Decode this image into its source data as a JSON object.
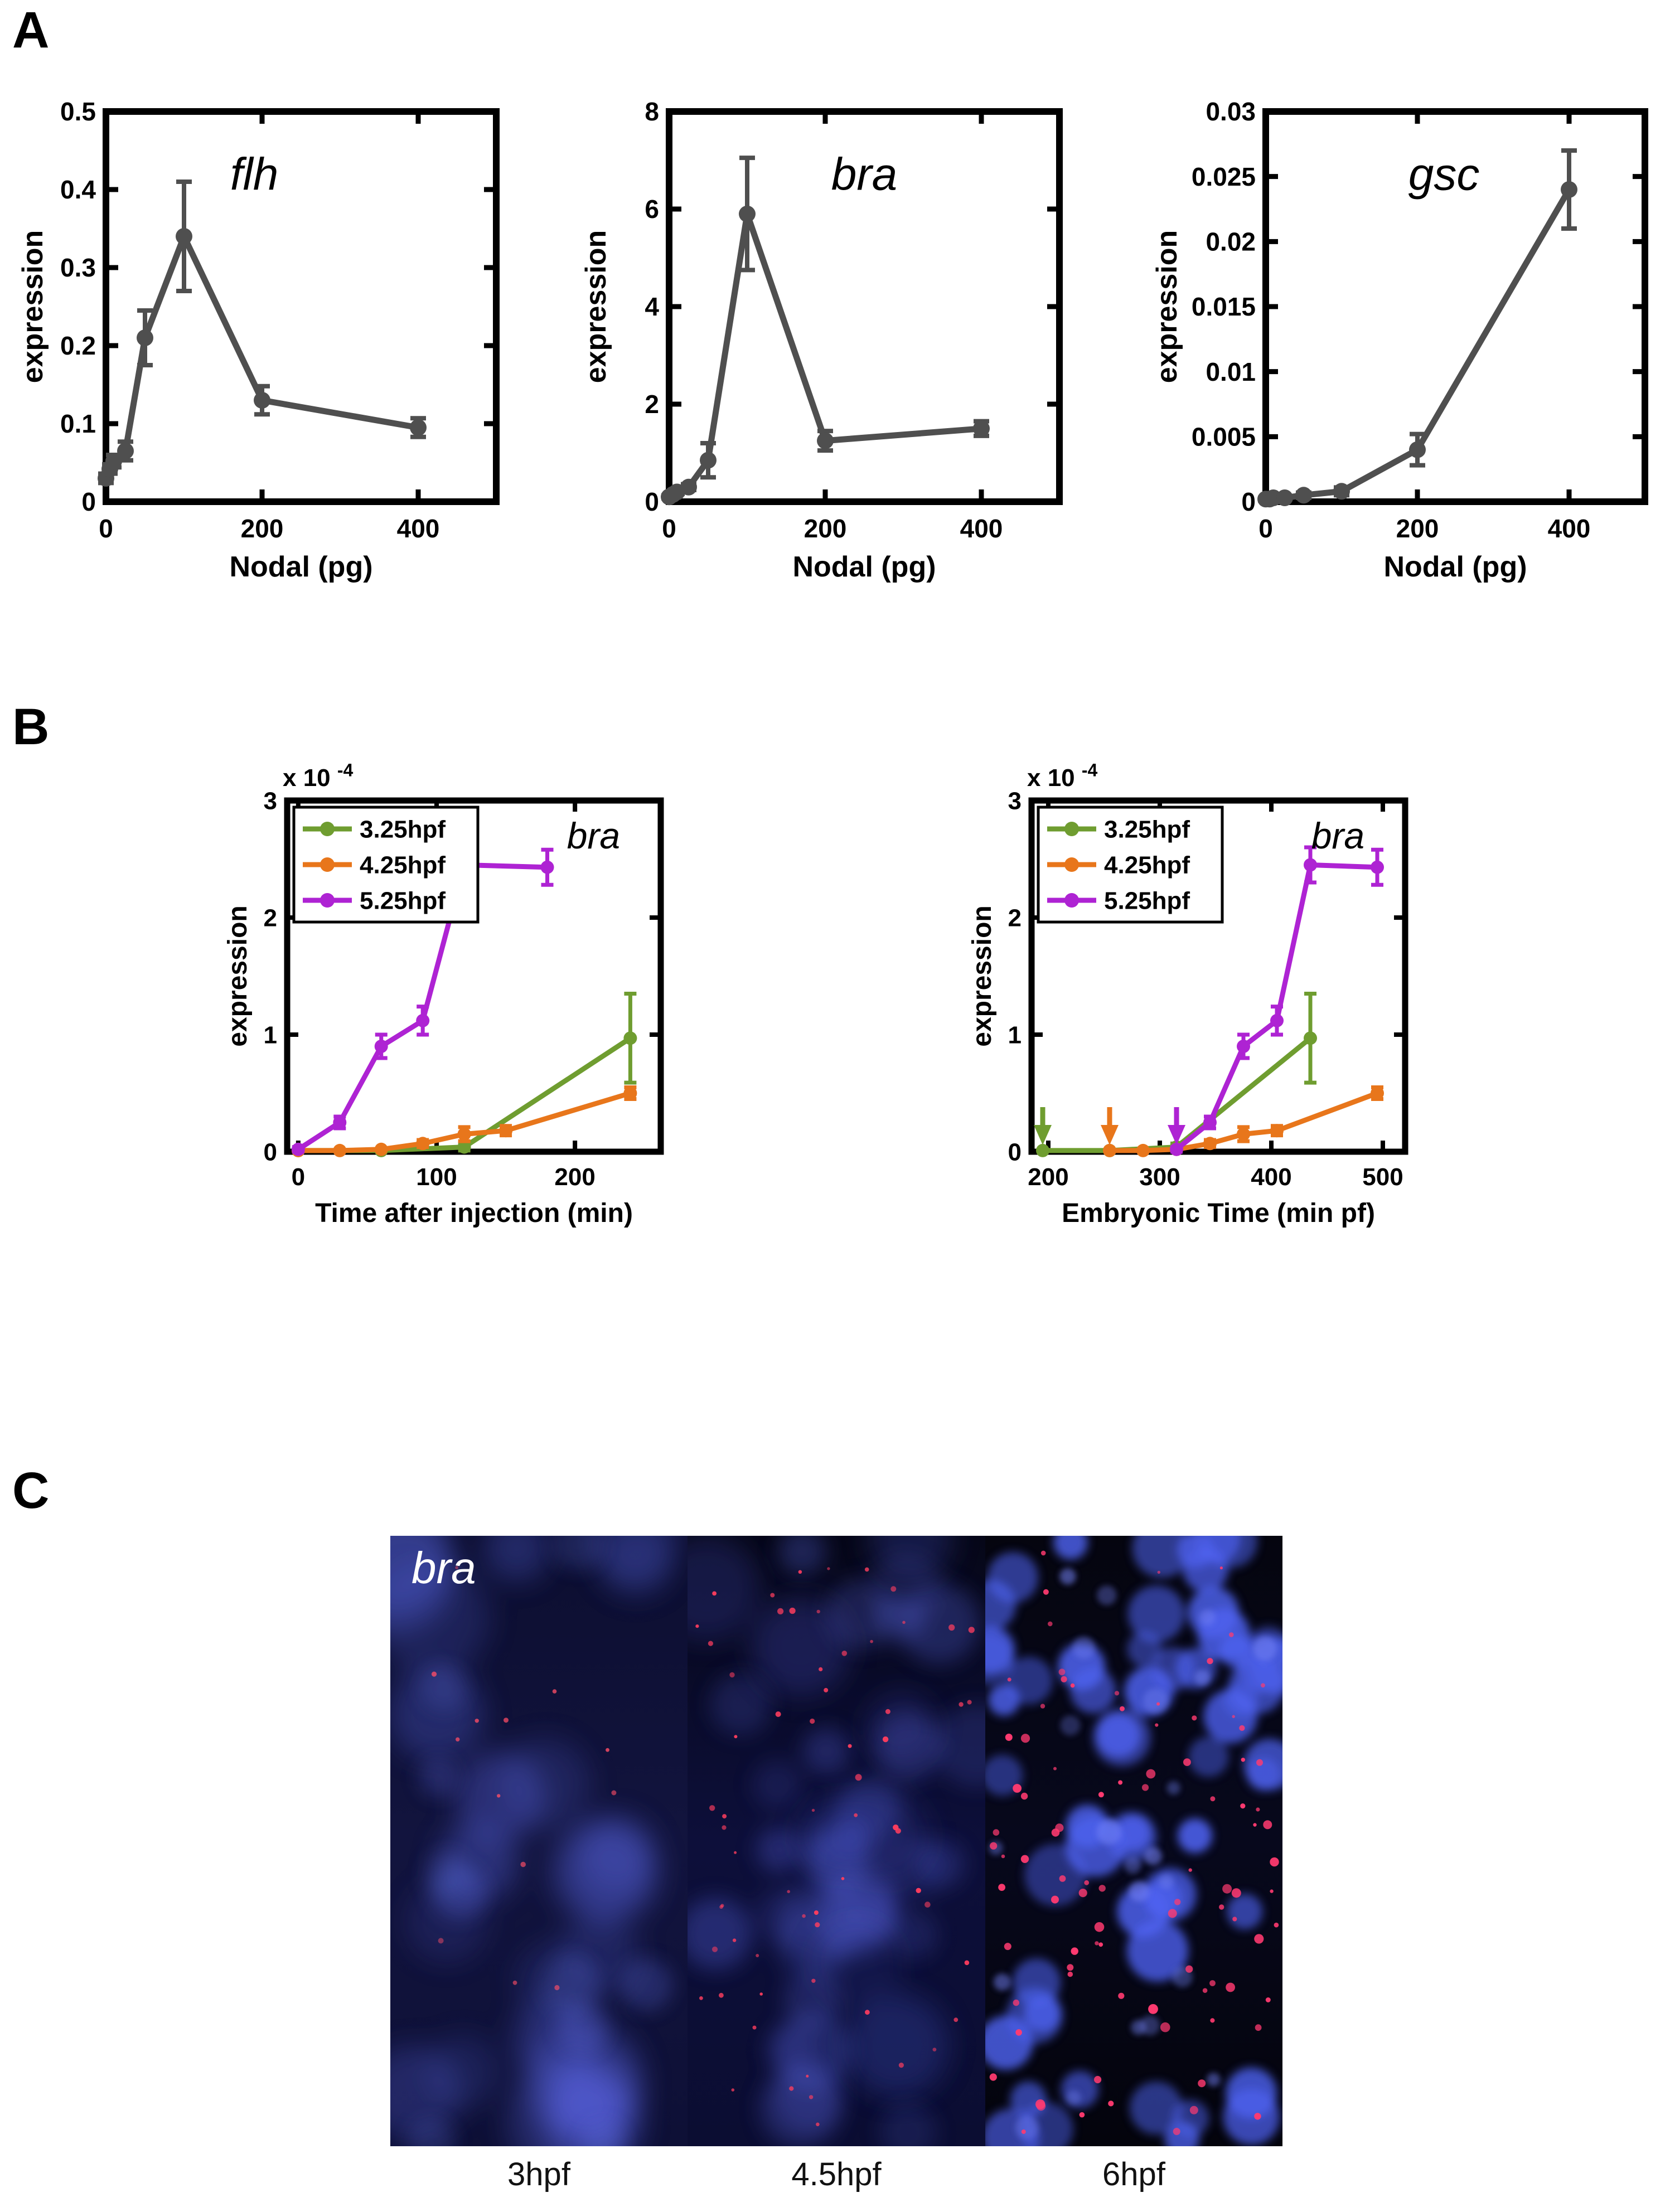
{
  "panels": {
    "a": "A",
    "b": "B",
    "c": "C"
  },
  "chart_data": [
    {
      "type": "line",
      "title": "flh",
      "xlabel": "Nodal (pg)",
      "ylabel": "expression",
      "xlim": [
        0,
        500
      ],
      "ylim": [
        0,
        0.5
      ],
      "xticks": [
        0,
        200,
        400
      ],
      "yticks": [
        0,
        0.1,
        0.2,
        0.3,
        0.4,
        0.5
      ],
      "ytick_labels": [
        "0",
        "0.1",
        "0.2",
        "0.3",
        "0.4",
        "0.5"
      ],
      "series": [
        {
          "name": "flh",
          "color": "#4f4f4f",
          "x": [
            0,
            5,
            10,
            25,
            50,
            100,
            200,
            400
          ],
          "y": [
            0.03,
            0.042,
            0.052,
            0.065,
            0.21,
            0.34,
            0.13,
            0.095
          ],
          "err": [
            0.006,
            0.006,
            0.008,
            0.012,
            0.035,
            0.07,
            0.018,
            0.012
          ]
        }
      ]
    },
    {
      "type": "line",
      "title": "bra",
      "xlabel": "Nodal (pg)",
      "ylabel": "expression",
      "xlim": [
        0,
        500
      ],
      "ylim": [
        0,
        8
      ],
      "xticks": [
        0,
        200,
        400
      ],
      "yticks": [
        0,
        2,
        4,
        6,
        8
      ],
      "ytick_labels": [
        "0",
        "2",
        "4",
        "6",
        "8"
      ],
      "series": [
        {
          "name": "bra",
          "color": "#4f4f4f",
          "x": [
            0,
            5,
            10,
            25,
            50,
            100,
            200,
            400
          ],
          "y": [
            0.1,
            0.15,
            0.2,
            0.3,
            0.85,
            5.9,
            1.25,
            1.5
          ],
          "err": [
            0.03,
            0.03,
            0.04,
            0.06,
            0.35,
            1.15,
            0.2,
            0.15
          ]
        }
      ]
    },
    {
      "type": "line",
      "title": "gsc",
      "xlabel": "Nodal (pg)",
      "ylabel": "expression",
      "xlim": [
        0,
        500
      ],
      "ylim": [
        0,
        0.03
      ],
      "xticks": [
        0,
        200,
        400
      ],
      "yticks": [
        0,
        0.005,
        0.01,
        0.015,
        0.02,
        0.025,
        0.03
      ],
      "ytick_labels": [
        "0",
        "0.005",
        "0.01",
        "0.015",
        "0.02",
        "0.025",
        "0.03"
      ],
      "series": [
        {
          "name": "gsc",
          "color": "#4f4f4f",
          "x": [
            0,
            5,
            10,
            25,
            50,
            100,
            200,
            400
          ],
          "y": [
            0.0002,
            0.0002,
            0.0003,
            0.0003,
            0.0005,
            0.0008,
            0.004,
            0.024
          ],
          "err": [
            0.0001,
            0.0001,
            0.0001,
            0.0001,
            0.0002,
            0.0003,
            0.0012,
            0.003
          ]
        }
      ]
    },
    {
      "type": "line",
      "title": "bra",
      "xlabel": "Time after injection (min)",
      "ylabel": "expression",
      "y_exponent_label": "x 10",
      "y_exponent": "-4",
      "y_scale": "1e-4",
      "xlim": [
        -8,
        262
      ],
      "ylim": [
        0,
        3
      ],
      "xticks": [
        0,
        100,
        200
      ],
      "yticks": [
        0,
        1,
        2,
        3
      ],
      "ytick_labels": [
        "0",
        "1",
        "2",
        "3"
      ],
      "legend": {
        "position": "top-left"
      },
      "series": [
        {
          "name": "3.25hpf",
          "color": "#6f9d30",
          "x": [
            0,
            60,
            120,
            240
          ],
          "y": [
            0.01,
            0.01,
            0.04,
            0.97
          ],
          "err": [
            0,
            0,
            0.03,
            0.38
          ]
        },
        {
          "name": "4.25hpf",
          "color": "#e8761b",
          "x": [
            0,
            30,
            60,
            90,
            120,
            150,
            240
          ],
          "y": [
            0.01,
            0.01,
            0.02,
            0.07,
            0.15,
            0.18,
            0.5
          ],
          "err": [
            0,
            0,
            0,
            0.03,
            0.06,
            0.04,
            0.05
          ]
        },
        {
          "name": "5.25hpf",
          "color": "#ae23d3",
          "x": [
            0,
            30,
            60,
            90,
            120,
            180
          ],
          "y": [
            0.02,
            0.25,
            0.9,
            1.12,
            2.45,
            2.43
          ],
          "err": [
            0.02,
            0.05,
            0.1,
            0.12,
            0.15,
            0.15
          ]
        }
      ]
    },
    {
      "type": "line",
      "title": "bra",
      "xlabel": "Embryonic Time (min pf)",
      "ylabel": "expression",
      "y_exponent_label": "x 10",
      "y_exponent": "-4",
      "y_scale": "1e-4",
      "xlim": [
        185,
        520
      ],
      "ylim": [
        0,
        3
      ],
      "xticks": [
        200,
        300,
        400,
        500
      ],
      "yticks": [
        0,
        1,
        2,
        3
      ],
      "ytick_labels": [
        "0",
        "1",
        "2",
        "3"
      ],
      "legend": {
        "position": "top-left"
      },
      "series": [
        {
          "name": "3.25hpf",
          "color": "#6f9d30",
          "x": [
            195,
            255,
            315,
            435
          ],
          "y": [
            0.01,
            0.01,
            0.04,
            0.97
          ],
          "err": [
            0,
            0,
            0.03,
            0.38
          ]
        },
        {
          "name": "4.25hpf",
          "color": "#e8761b",
          "x": [
            255,
            285,
            315,
            345,
            375,
            405,
            495
          ],
          "y": [
            0.01,
            0.01,
            0.02,
            0.07,
            0.15,
            0.18,
            0.5
          ],
          "err": [
            0,
            0,
            0,
            0.03,
            0.06,
            0.04,
            0.05
          ]
        },
        {
          "name": "5.25hpf",
          "color": "#ae23d3",
          "x": [
            315,
            345,
            375,
            405,
            435,
            495
          ],
          "y": [
            0.02,
            0.25,
            0.9,
            1.12,
            2.45,
            2.43
          ],
          "err": [
            0.02,
            0.05,
            0.1,
            0.12,
            0.15,
            0.15
          ]
        }
      ],
      "injection_arrows": [
        {
          "x": 195,
          "color": "#6f9d30"
        },
        {
          "x": 255,
          "color": "#e8761b"
        },
        {
          "x": 315,
          "color": "#ae23d3"
        }
      ]
    }
  ],
  "micrographs": {
    "gene_label": "bra",
    "images": [
      {
        "label": "3hpf",
        "render": {
          "seed": 7,
          "bg": [
            "#0c0e30",
            "#12143e",
            "#0e1036"
          ],
          "nuclei": [
            {
              "count": 24,
              "r": [
                55,
                110
              ],
              "opacity": [
                0.14,
                0.34
              ],
              "blur": 24,
              "color": "#5a68e8"
            },
            {
              "count": 10,
              "r": [
                30,
                55
              ],
              "opacity": [
                0.1,
                0.25
              ],
              "blur": 16,
              "color": "#6474f0"
            }
          ],
          "dots": [
            {
              "count": 13,
              "r": [
                2.5,
                5
              ],
              "opacity": [
                0.45,
                0.85
              ],
              "color": "#ff4d66",
              "area": [
                0.08,
                0.92,
                0.05,
                0.75
              ]
            }
          ]
        }
      },
      {
        "label": "4.5hpf",
        "render": {
          "seed": 11,
          "bg": [
            "#060718",
            "#0d0f3a",
            "#0b0d32"
          ],
          "nuclei": [
            {
              "count": 30,
              "r": [
                40,
                78
              ],
              "opacity": [
                0.13,
                0.32
              ],
              "blur": 18,
              "color": "#5a68e8"
            },
            {
              "count": 8,
              "r": [
                60,
                95
              ],
              "opacity": [
                0.12,
                0.26
              ],
              "blur": 24,
              "color": "#4a58d8"
            }
          ],
          "dots": [
            {
              "count": 55,
              "r": [
                2.5,
                6
              ],
              "opacity": [
                0.55,
                1
              ],
              "color": "#ff3d5e",
              "area": [
                0.03,
                0.97,
                0.05,
                0.8
              ]
            },
            {
              "count": 8,
              "r": [
                2.5,
                5
              ],
              "opacity": [
                0.5,
                0.9
              ],
              "color": "#ff3d5e",
              "area": [
                0.1,
                0.9,
                0.8,
                0.97
              ]
            }
          ]
        }
      },
      {
        "label": "6hpf",
        "render": {
          "seed": 23,
          "bg": [
            "#05050f",
            "#07081c",
            "#04040c"
          ],
          "nuclei": [
            {
              "count": 58,
              "r": [
                28,
                56
              ],
              "opacity": [
                0.45,
                0.88
              ],
              "blur": 8,
              "color": "#4e62f0"
            },
            {
              "count": 22,
              "r": [
                12,
                24
              ],
              "opacity": [
                0.3,
                0.6
              ],
              "blur": 5,
              "color": "#7280f5"
            }
          ],
          "dots": [
            {
              "count": 72,
              "r": [
                3,
                9
              ],
              "opacity": [
                0.7,
                1
              ],
              "color": "#ff3a70",
              "area": [
                0.02,
                0.98,
                0.3,
                0.98
              ]
            },
            {
              "count": 18,
              "r": [
                2.5,
                6
              ],
              "opacity": [
                0.6,
                0.95
              ],
              "color": "#ff3a70",
              "area": [
                0.05,
                0.95,
                0.02,
                0.3
              ]
            }
          ]
        }
      }
    ]
  }
}
